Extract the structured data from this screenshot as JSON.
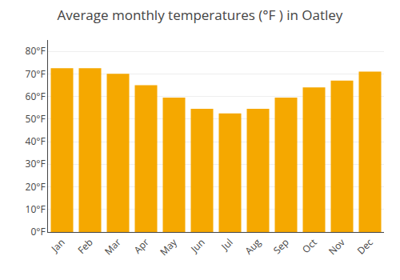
{
  "chart_data": {
    "type": "bar",
    "title": "Average monthly temperatures (°F ) in Oatley",
    "categories": [
      "Jan",
      "Feb",
      "Mar",
      "Apr",
      "May",
      "Jun",
      "Jul",
      "Aug",
      "Sep",
      "Oct",
      "Nov",
      "Dec"
    ],
    "values": [
      72.5,
      72.5,
      70,
      65,
      59.5,
      54.5,
      52.5,
      54.5,
      59.5,
      64,
      67,
      71
    ],
    "color": "#F5A800",
    "ylim": [
      0,
      85
    ],
    "yticks": [
      {
        "value": 0,
        "label": "0°F"
      },
      {
        "value": 10,
        "label": "10°F"
      },
      {
        "value": 20,
        "label": "20°F"
      },
      {
        "value": 30,
        "label": "30°F"
      },
      {
        "value": 40,
        "label": "40°F"
      },
      {
        "value": 50,
        "label": "50°F"
      },
      {
        "value": 60,
        "label": "60°F"
      },
      {
        "value": 70,
        "label": "70°F"
      },
      {
        "value": 80,
        "label": "80°F"
      }
    ],
    "grid": true
  }
}
